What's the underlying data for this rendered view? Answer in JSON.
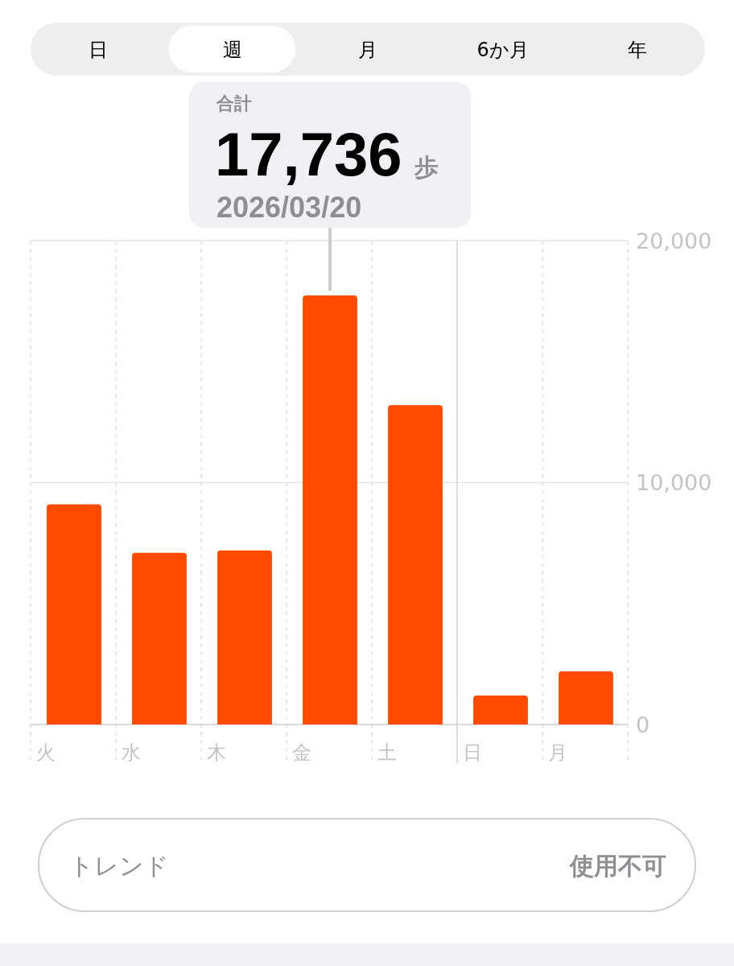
{
  "chart_data": {
    "type": "bar",
    "categories": [
      "火",
      "水",
      "木",
      "金",
      "土",
      "日",
      "月"
    ],
    "values": [
      9100,
      7100,
      7200,
      17736,
      13200,
      1200,
      2200
    ],
    "color": "#ff4a00",
    "ylim": [
      0,
      20000
    ],
    "yticks": [
      0,
      {
        "value": 10000,
        "label": "10,000"
      },
      {
        "value": 20000,
        "label": "20,000"
      }
    ],
    "grid": "y",
    "ref_lines": [
      {
        "axis": "x",
        "value": "日",
        "line_style": "solid"
      }
    ],
    "annotations": [
      "日",
      "週",
      "月",
      "6か月",
      "年",
      "合計",
      {
        "text": "17,736",
        "x": "金",
        "y": 17736
      },
      "歩",
      "2026/03/20",
      "トレンド",
      "使用不可"
    ]
  }
}
